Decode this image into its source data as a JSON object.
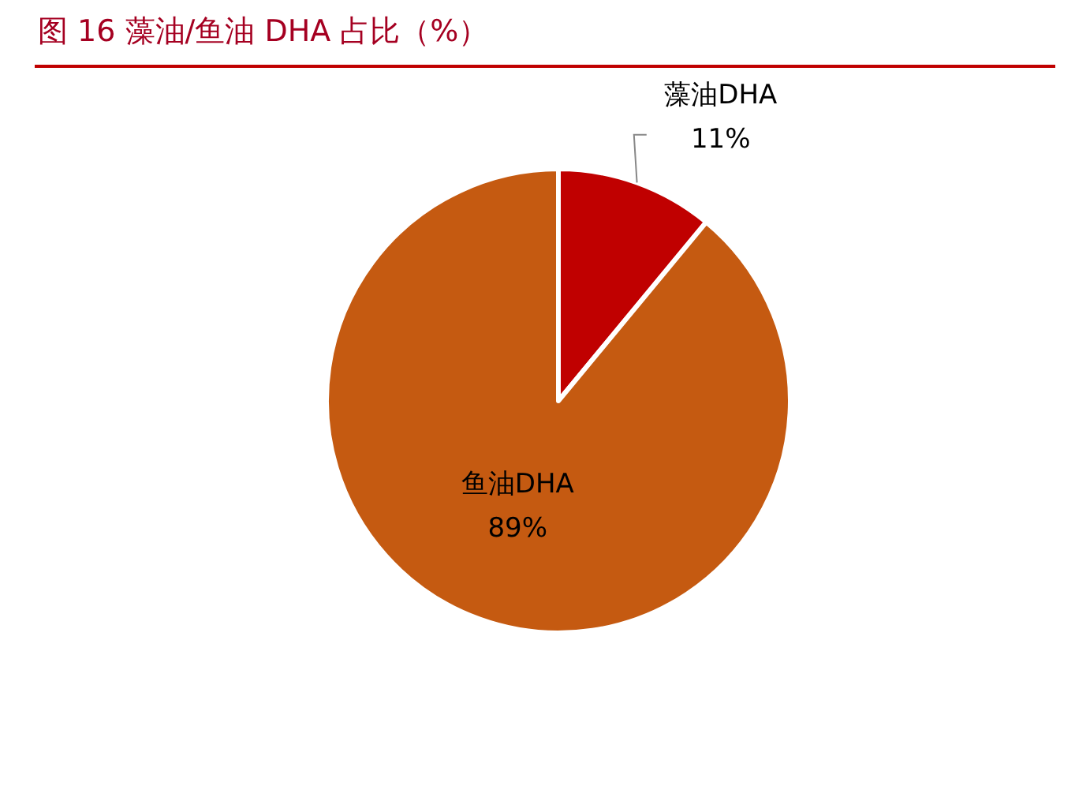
{
  "chart_data": {
    "type": "pie",
    "title": "图 16 藻油/鱼油 DHA 占比（%）",
    "categories": [
      "藻油DHA",
      "鱼油DHA"
    ],
    "values": [
      11,
      89
    ],
    "colors": [
      "#c00000",
      "#c55a11"
    ],
    "value_labels": [
      "11%",
      "89%"
    ],
    "legend": false
  }
}
